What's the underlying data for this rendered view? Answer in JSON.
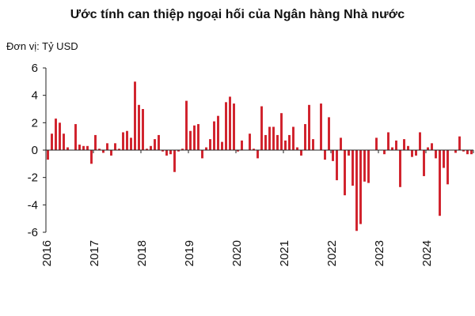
{
  "header": {
    "title": "Ước tính can thiệp ngoại hối của Ngân hàng Nhà nước",
    "unit": "Đơn vị: Tỷ USD"
  },
  "chart_data": {
    "type": "bar",
    "color": "#d0202a",
    "ylim": [
      -6,
      6
    ],
    "yticks": [
      -6,
      -4,
      -2,
      0,
      2,
      4,
      6
    ],
    "x_start": "2016-01",
    "x_end": "2024-12",
    "xtick_labels": [
      "2016",
      "2017",
      "2018",
      "2019",
      "2020",
      "2021",
      "2022",
      "2023",
      "2024"
    ],
    "grid": false,
    "series": [
      {
        "values": [
          -0.7,
          1.2,
          2.3,
          2.0,
          1.2,
          0.2,
          0.0,
          1.9,
          0.4,
          0.3,
          0.3,
          -1.0,
          1.1,
          0.1,
          -0.2,
          0.5,
          -0.4,
          0.5,
          0.1,
          1.3,
          1.4,
          0.9,
          5.0,
          3.3,
          3.0,
          0.1,
          0.3,
          0.8,
          1.1,
          -0.1,
          -0.4,
          -0.3,
          -1.6,
          -0.1,
          0.1,
          3.6,
          1.4,
          1.8,
          1.9,
          -0.6,
          0.2,
          0.8,
          2.1,
          2.5,
          0.6,
          3.5,
          3.9,
          3.4,
          -0.1,
          0.7,
          0.0,
          1.2,
          0.1,
          -0.6,
          3.2,
          1.1,
          1.7,
          1.7,
          1.1,
          2.7,
          0.7,
          1.1,
          1.7,
          0.2,
          -0.4,
          1.9,
          3.3,
          0.8,
          0.0,
          3.4,
          -0.7,
          2.4,
          -0.8,
          -2.2,
          0.9,
          -3.3,
          -0.4,
          -2.6,
          -5.9,
          -5.4,
          -2.3,
          -2.4,
          0.0,
          0.9,
          0.0,
          -0.3,
          1.3,
          0.2,
          0.7,
          -2.7,
          0.8,
          0.3,
          -0.5,
          -0.4,
          1.3,
          -1.9,
          0.2,
          0.5,
          -0.6,
          -4.8,
          -1.3,
          -2.5,
          0.0,
          -0.2,
          1.0,
          -0.1,
          -0.3,
          -0.3
        ]
      }
    ]
  }
}
